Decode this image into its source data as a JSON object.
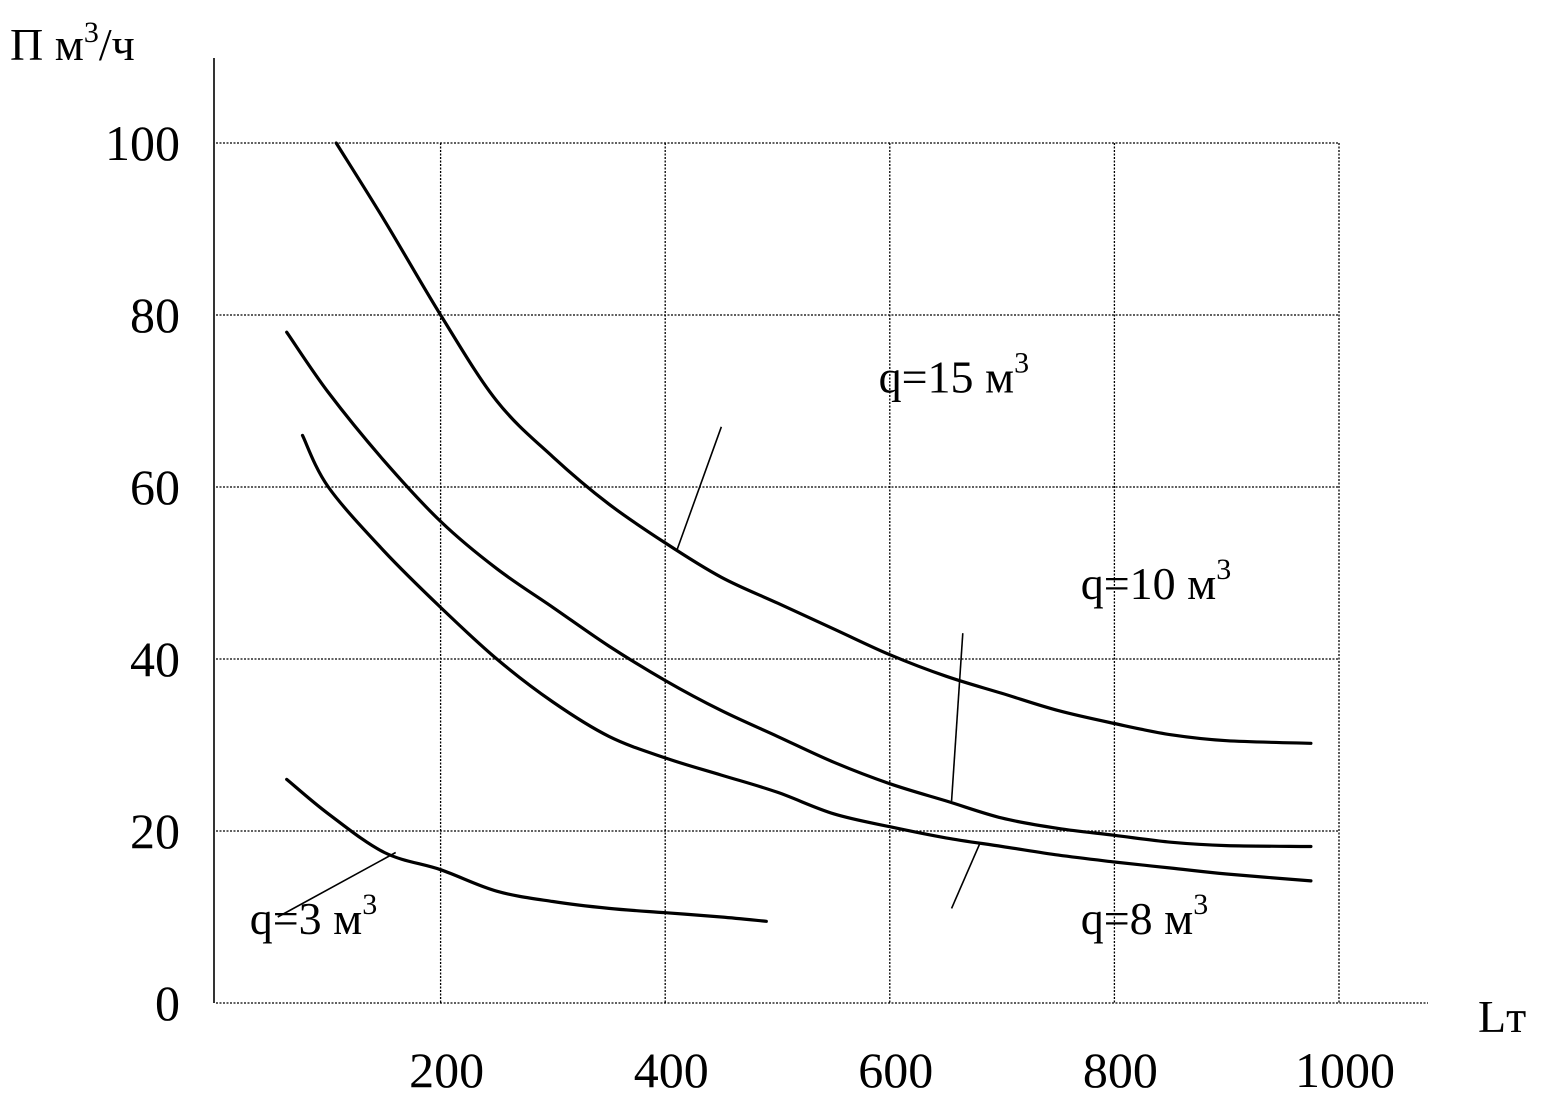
{
  "chart_data": {
    "type": "line",
    "ylabel": {
      "main": "П м",
      "sup": "3",
      "tail": "/ч"
    },
    "xlabel": "Lт",
    "xlim": [
      0,
      1000
    ],
    "ylim": [
      0,
      100
    ],
    "x_ticks": [
      "200",
      "400",
      "600",
      "800",
      "1000"
    ],
    "x_tick_values": [
      200,
      400,
      600,
      800,
      1000
    ],
    "y_ticks": [
      "0",
      "20",
      "40",
      "60",
      "80",
      "100"
    ],
    "y_tick_values": [
      0,
      20,
      40,
      60,
      80,
      100
    ],
    "grid": true,
    "series": [
      {
        "name": {
          "main": "q=15 м",
          "sup": "3"
        },
        "x": [
          107,
          150,
          200,
          250,
          300,
          350,
          400,
          450,
          500,
          550,
          600,
          650,
          700,
          750,
          800,
          850,
          900,
          975
        ],
        "y": [
          100,
          91,
          80,
          70,
          63.5,
          58,
          53.5,
          49.5,
          46.5,
          43.5,
          40.5,
          38,
          36,
          34,
          32.5,
          31.2,
          30.5,
          30.2
        ]
      },
      {
        "name": {
          "main": "q=10 м",
          "sup": "3"
        },
        "x": [
          63,
          100,
          150,
          200,
          250,
          300,
          350,
          400,
          450,
          500,
          550,
          600,
          650,
          700,
          750,
          800,
          850,
          900,
          975
        ],
        "y": [
          78,
          71,
          63,
          56,
          50.5,
          46,
          41.5,
          37.5,
          34,
          31,
          28,
          25.5,
          23.5,
          21.5,
          20.3,
          19.5,
          18.7,
          18.3,
          18.2
        ]
      },
      {
        "name": {
          "main": "q=8 м",
          "sup": "3"
        },
        "x": [
          77,
          100,
          150,
          200,
          250,
          300,
          350,
          400,
          450,
          500,
          550,
          600,
          650,
          700,
          750,
          800,
          850,
          900,
          975
        ],
        "y": [
          66,
          60,
          52.5,
          46,
          40,
          35,
          31,
          28.5,
          26.5,
          24.5,
          22,
          20.5,
          19.2,
          18.2,
          17.2,
          16.4,
          15.7,
          15,
          14.2
        ]
      },
      {
        "name": {
          "main": "q=3 м",
          "sup": "3"
        },
        "x": [
          63,
          100,
          150,
          200,
          250,
          300,
          350,
          400,
          450,
          490
        ],
        "y": [
          26,
          22,
          17.5,
          15.5,
          13,
          11.8,
          11,
          10.5,
          10,
          9.5
        ]
      }
    ],
    "annotations": [
      {
        "series": 0,
        "label_x": 590,
        "label_y": 71,
        "tip_x": 410,
        "tip_y": 52.5,
        "start_x": 450,
        "start_y": 67
      },
      {
        "series": 1,
        "label_x": 770,
        "label_y": 47,
        "tip_x": 655,
        "tip_y": 23.5,
        "start_x": 665,
        "start_y": 43
      },
      {
        "series": 2,
        "label_x": 770,
        "label_y": 8,
        "tip_x": 680,
        "tip_y": 18.5,
        "start_x": 655,
        "start_y": 11
      },
      {
        "series": 3,
        "label_x": 30,
        "label_y": 8,
        "tip_x": 160,
        "tip_y": 17.5,
        "start_x": 55,
        "start_y": 10
      }
    ]
  }
}
